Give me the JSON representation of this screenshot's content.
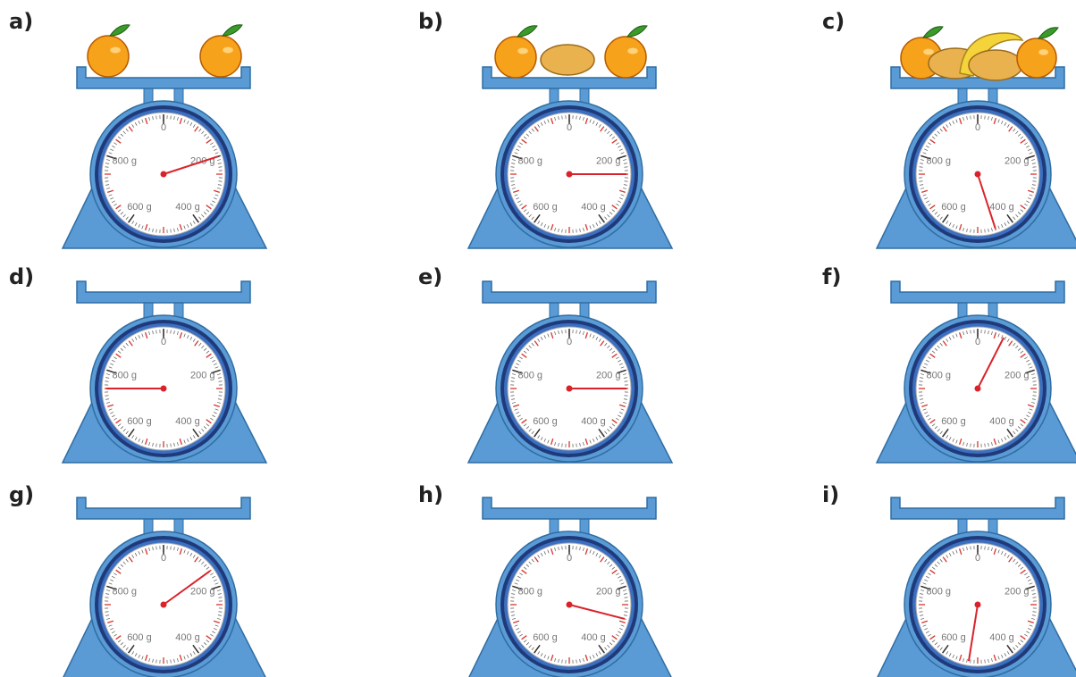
{
  "dial": {
    "range": [
      0,
      1000
    ],
    "labels": [
      {
        "value": 0,
        "label": "0"
      },
      {
        "value": 200,
        "label": "200 g"
      },
      {
        "value": 400,
        "label": "400 g"
      },
      {
        "value": 600,
        "label": "600 g"
      },
      {
        "value": 800,
        "label": "800 g"
      }
    ]
  },
  "scales": [
    {
      "label": "a)",
      "reading": 200
    },
    {
      "label": "b)",
      "reading": 250
    },
    {
      "label": "c)",
      "reading": 450
    },
    {
      "label": "d)",
      "reading": 750
    },
    {
      "label": "e)",
      "reading": 250
    },
    {
      "label": "f)",
      "reading": 75
    },
    {
      "label": "g)",
      "reading": 150
    },
    {
      "label": "h)",
      "reading": 290
    },
    {
      "label": "i)",
      "reading": 525
    }
  ]
}
